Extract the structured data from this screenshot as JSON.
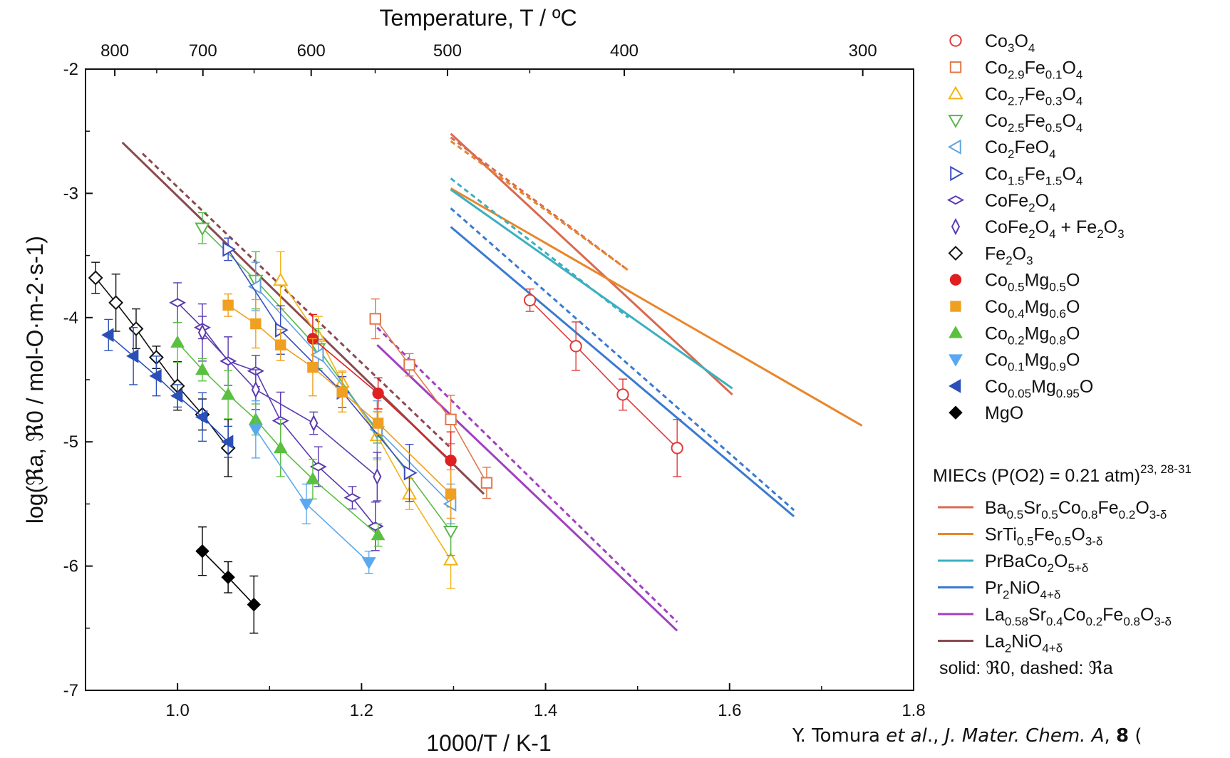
{
  "chart_data": {
    "type": "scatter",
    "xlabel": "1000/T / K-1",
    "ylabel": "log(ℜa, ℜ0 / mol-O·m-2·s-1)",
    "top_axis_label": "Temperature, T / ºC",
    "xlim": [
      0.9,
      1.8
    ],
    "ylim": [
      -7,
      -2
    ],
    "x_ticks": [
      1.0,
      1.2,
      1.4,
      1.6,
      1.8
    ],
    "x_tick_labels": [
      "1.0",
      "1.2",
      "1.4",
      "1.6",
      "1.8"
    ],
    "y_ticks": [
      -7,
      -6,
      -5,
      -4,
      -3,
      -2
    ],
    "y_tick_labels": [
      "-7",
      "-6",
      "-5",
      "-4",
      "-3",
      "-2"
    ],
    "top_ticks_celsius": [
      800,
      700,
      600,
      500,
      400,
      300
    ],
    "top_tick_labels": [
      "800",
      "700",
      "600",
      "500",
      "400",
      "300"
    ],
    "grid": false,
    "legend_position": "right",
    "series": [
      {
        "name": "Co3O4",
        "color": "#e03a3a",
        "marker": "circle",
        "filled": false,
        "points": [
          [
            1.383,
            -3.86
          ],
          [
            1.433,
            -4.23
          ],
          [
            1.484,
            -4.62
          ],
          [
            1.543,
            -5.05
          ]
        ]
      },
      {
        "name": "Co2.9Fe0.1O4",
        "color": "#e2784a",
        "marker": "square",
        "filled": false,
        "points": [
          [
            1.215,
            -4.01
          ],
          [
            1.252,
            -4.38
          ],
          [
            1.297,
            -4.82
          ],
          [
            1.336,
            -5.33
          ]
        ]
      },
      {
        "name": "Co2.7Fe0.3O4",
        "color": "#f2b41a",
        "marker": "triangle-up",
        "filled": false,
        "points": [
          [
            1.112,
            -3.7
          ],
          [
            1.153,
            -4.15
          ],
          [
            1.179,
            -4.52
          ],
          [
            1.217,
            -4.95
          ],
          [
            1.252,
            -5.42
          ],
          [
            1.297,
            -5.95
          ]
        ]
      },
      {
        "name": "Co2.5Fe0.5O4",
        "color": "#5ab84a",
        "marker": "triangle-down",
        "filled": false,
        "points": [
          [
            1.027,
            -3.28
          ],
          [
            1.085,
            -3.7
          ],
          [
            1.153,
            -4.25
          ],
          [
            1.217,
            -4.92
          ],
          [
            1.297,
            -5.72
          ]
        ]
      },
      {
        "name": "Co2FeO4",
        "color": "#62a2e0",
        "marker": "triangle-left",
        "filled": false,
        "points": [
          [
            1.085,
            -3.75
          ],
          [
            1.153,
            -4.3
          ],
          [
            1.217,
            -4.9
          ],
          [
            1.297,
            -5.5
          ]
        ]
      },
      {
        "name": "Co1.5Fe1.5O4",
        "color": "#3a4cc0",
        "marker": "triangle-right",
        "filled": false,
        "points": [
          [
            1.055,
            -3.45
          ],
          [
            1.112,
            -4.1
          ],
          [
            1.179,
            -4.6
          ],
          [
            1.252,
            -5.25
          ]
        ]
      },
      {
        "name": "CoFe2O4",
        "color": "#5a3ab0",
        "marker": "diamond-wide",
        "filled": false,
        "points": [
          [
            1.0,
            -3.88
          ],
          [
            1.027,
            -4.08
          ],
          [
            1.055,
            -4.35
          ],
          [
            1.085,
            -4.43
          ],
          [
            1.112,
            -4.83
          ],
          [
            1.153,
            -5.2
          ],
          [
            1.19,
            -5.45
          ],
          [
            1.215,
            -5.68
          ]
        ]
      },
      {
        "name": "CoFe2O4 + Fe2O3",
        "color": "#5a3ab0",
        "marker": "diamond-tall",
        "filled": false,
        "points": [
          [
            1.027,
            -4.12
          ],
          [
            1.085,
            -4.58
          ],
          [
            1.148,
            -4.85
          ],
          [
            1.217,
            -5.28
          ]
        ]
      },
      {
        "name": "Fe2O3",
        "color": "#111111",
        "marker": "diamond",
        "filled": false,
        "points": [
          [
            0.911,
            -3.68
          ],
          [
            0.933,
            -3.88
          ],
          [
            0.955,
            -4.09
          ],
          [
            0.977,
            -4.32
          ],
          [
            1.0,
            -4.55
          ],
          [
            1.027,
            -4.78
          ],
          [
            1.055,
            -5.05
          ]
        ]
      },
      {
        "name": "Co0.5Mg0.5O",
        "color": "#e02020",
        "marker": "circle",
        "filled": true,
        "points": [
          [
            1.147,
            -4.17
          ],
          [
            1.218,
            -4.61
          ],
          [
            1.297,
            -5.15
          ]
        ]
      },
      {
        "name": "Co0.4Mg0.6O",
        "color": "#f0a020",
        "marker": "square",
        "filled": true,
        "points": [
          [
            1.055,
            -3.9
          ],
          [
            1.085,
            -4.05
          ],
          [
            1.112,
            -4.22
          ],
          [
            1.147,
            -4.4
          ],
          [
            1.179,
            -4.6
          ],
          [
            1.218,
            -4.85
          ],
          [
            1.297,
            -5.42
          ]
        ]
      },
      {
        "name": "Co0.2Mg0.8O",
        "color": "#5ac040",
        "marker": "triangle-up",
        "filled": true,
        "points": [
          [
            1.0,
            -4.2
          ],
          [
            1.027,
            -4.42
          ],
          [
            1.055,
            -4.62
          ],
          [
            1.085,
            -4.82
          ],
          [
            1.112,
            -5.05
          ],
          [
            1.147,
            -5.3
          ],
          [
            1.218,
            -5.75
          ]
        ]
      },
      {
        "name": "Co0.1Mg0.9O",
        "color": "#5aa8f0",
        "marker": "triangle-down",
        "filled": true,
        "points": [
          [
            1.085,
            -4.9
          ],
          [
            1.14,
            -5.5
          ],
          [
            1.208,
            -5.97
          ]
        ]
      },
      {
        "name": "Co0.05Mg0.95O",
        "color": "#2a50b8",
        "marker": "triangle-left",
        "filled": true,
        "points": [
          [
            0.925,
            -4.14
          ],
          [
            0.952,
            -4.31
          ],
          [
            0.977,
            -4.47
          ],
          [
            1.0,
            -4.63
          ],
          [
            1.027,
            -4.8
          ],
          [
            1.055,
            -5.0
          ]
        ]
      },
      {
        "name": "MgO",
        "color": "#000000",
        "marker": "diamond",
        "filled": true,
        "points": [
          [
            1.027,
            -5.88
          ],
          [
            1.055,
            -6.09
          ],
          [
            1.083,
            -6.31
          ]
        ]
      }
    ],
    "miec_lines": [
      {
        "name": "Ba0.5Sr0.5Co0.8Fe0.2O3-δ",
        "color": "#d86a50",
        "solid": [
          [
            1.297,
            -2.52
          ],
          [
            1.603,
            -4.62
          ]
        ],
        "dashed": [
          [
            1.297,
            -2.55
          ],
          [
            1.49,
            -3.62
          ]
        ]
      },
      {
        "name": "SrTi0.5Fe0.5O3-δ",
        "color": "#e8862a",
        "solid": [
          [
            1.297,
            -2.96
          ],
          [
            1.744,
            -4.87
          ]
        ],
        "dashed": [
          [
            1.297,
            -2.58
          ],
          [
            1.49,
            -3.62
          ]
        ]
      },
      {
        "name": "PrBaCo2O5+δ",
        "color": "#3ab0c0",
        "solid": [
          [
            1.297,
            -2.97
          ],
          [
            1.603,
            -4.57
          ]
        ],
        "dashed": [
          [
            1.297,
            -2.88
          ],
          [
            1.49,
            -4.0
          ]
        ]
      },
      {
        "name": "Pr2NiO4+δ",
        "color": "#3a7ad0",
        "solid": [
          [
            1.297,
            -3.27
          ],
          [
            1.67,
            -5.6
          ]
        ],
        "dashed": [
          [
            1.297,
            -3.12
          ],
          [
            1.67,
            -5.55
          ]
        ]
      },
      {
        "name": "La0.58Sr0.4Co0.2Fe0.8O3-δ",
        "color": "#a040c0",
        "solid": [
          [
            1.217,
            -4.22
          ],
          [
            1.543,
            -6.52
          ]
        ],
        "dashed": [
          [
            1.217,
            -4.08
          ],
          [
            1.543,
            -6.45
          ]
        ]
      },
      {
        "name": "La2NiO4+δ",
        "color": "#8a4a50",
        "solid": [
          [
            0.94,
            -2.59
          ],
          [
            1.333,
            -5.42
          ]
        ],
        "dashed": [
          [
            0.962,
            -2.68
          ],
          [
            1.297,
            -5.05
          ]
        ]
      }
    ]
  },
  "legend": {
    "entries": [
      {
        "base": "Co",
        "subs": [
          [
            "Co",
            ""
          ],
          [
            "3",
            true
          ],
          [
            "O",
            ""
          ],
          [
            "4",
            true
          ]
        ]
      },
      {
        "subs": [
          [
            "Co",
            ""
          ],
          [
            "2.9",
            true
          ],
          [
            "Fe",
            ""
          ],
          [
            "0.1",
            true
          ],
          [
            "O",
            ""
          ],
          [
            "4",
            true
          ]
        ]
      },
      {
        "subs": [
          [
            "Co",
            ""
          ],
          [
            "2.7",
            true
          ],
          [
            "Fe",
            ""
          ],
          [
            "0.3",
            true
          ],
          [
            "O",
            ""
          ],
          [
            "4",
            true
          ]
        ]
      },
      {
        "subs": [
          [
            "Co",
            ""
          ],
          [
            "2.5",
            true
          ],
          [
            "Fe",
            ""
          ],
          [
            "0.5",
            true
          ],
          [
            "O",
            ""
          ],
          [
            "4",
            true
          ]
        ]
      },
      {
        "subs": [
          [
            "Co",
            ""
          ],
          [
            "2",
            true
          ],
          [
            "FeO",
            ""
          ],
          [
            "4",
            true
          ]
        ]
      },
      {
        "subs": [
          [
            "Co",
            ""
          ],
          [
            "1.5",
            true
          ],
          [
            "Fe",
            ""
          ],
          [
            "1.5",
            true
          ],
          [
            "O",
            ""
          ],
          [
            "4",
            true
          ]
        ]
      },
      {
        "subs": [
          [
            "CoFe",
            ""
          ],
          [
            "2",
            true
          ],
          [
            "O",
            ""
          ],
          [
            "4",
            true
          ]
        ]
      },
      {
        "subs": [
          [
            "CoFe",
            ""
          ],
          [
            "2",
            true
          ],
          [
            "O",
            ""
          ],
          [
            "4",
            true
          ],
          [
            " + Fe",
            ""
          ],
          [
            "2",
            true
          ],
          [
            "O",
            ""
          ],
          [
            "3",
            true
          ]
        ]
      },
      {
        "subs": [
          [
            "Fe",
            ""
          ],
          [
            "2",
            true
          ],
          [
            "O",
            ""
          ],
          [
            "3",
            true
          ]
        ]
      },
      {
        "subs": [
          [
            "Co",
            ""
          ],
          [
            "0.5",
            true
          ],
          [
            "Mg",
            ""
          ],
          [
            "0.5",
            true
          ],
          [
            "O",
            ""
          ]
        ]
      },
      {
        "subs": [
          [
            "Co",
            ""
          ],
          [
            "0.4",
            true
          ],
          [
            "Mg",
            ""
          ],
          [
            "0.6",
            true
          ],
          [
            "O",
            ""
          ]
        ]
      },
      {
        "subs": [
          [
            "Co",
            ""
          ],
          [
            "0.2",
            true
          ],
          [
            "Mg",
            ""
          ],
          [
            "0.8",
            true
          ],
          [
            "O",
            ""
          ]
        ]
      },
      {
        "subs": [
          [
            "Co",
            ""
          ],
          [
            "0.1",
            true
          ],
          [
            "Mg",
            ""
          ],
          [
            "0.9",
            true
          ],
          [
            "O",
            ""
          ]
        ]
      },
      {
        "subs": [
          [
            "Co",
            ""
          ],
          [
            "0.05",
            true
          ],
          [
            "Mg",
            ""
          ],
          [
            "0.95",
            true
          ],
          [
            "O",
            ""
          ]
        ]
      },
      {
        "subs": [
          [
            "MgO",
            ""
          ]
        ]
      }
    ],
    "miec_heading": "MIECs (P(O2) = 0.21 atm)",
    "miec_heading_sup": "23, 28-31",
    "miec_entries": [
      {
        "subs": [
          [
            "Ba",
            ""
          ],
          [
            "0.5",
            true
          ],
          [
            "Sr",
            ""
          ],
          [
            "0.5",
            true
          ],
          [
            "Co",
            ""
          ],
          [
            "0.8",
            true
          ],
          [
            "Fe",
            ""
          ],
          [
            "0.2",
            true
          ],
          [
            "O",
            ""
          ],
          [
            "3-δ",
            true
          ]
        ]
      },
      {
        "subs": [
          [
            "SrTi",
            ""
          ],
          [
            "0.5",
            true
          ],
          [
            "Fe",
            ""
          ],
          [
            "0.5",
            true
          ],
          [
            "O",
            ""
          ],
          [
            "3-δ",
            true
          ]
        ]
      },
      {
        "subs": [
          [
            "PrBaCo",
            ""
          ],
          [
            "2",
            true
          ],
          [
            "O",
            ""
          ],
          [
            "5+δ",
            true
          ]
        ]
      },
      {
        "subs": [
          [
            "Pr",
            ""
          ],
          [
            "2",
            true
          ],
          [
            "NiO",
            ""
          ],
          [
            "4+δ",
            true
          ]
        ]
      },
      {
        "subs": [
          [
            "La",
            ""
          ],
          [
            "0.58",
            true
          ],
          [
            "Sr",
            ""
          ],
          [
            "0.4",
            true
          ],
          [
            "Co",
            ""
          ],
          [
            "0.2",
            true
          ],
          [
            "Fe",
            ""
          ],
          [
            "0.8",
            true
          ],
          [
            "O",
            ""
          ],
          [
            "3-δ",
            true
          ]
        ]
      },
      {
        "subs": [
          [
            "La",
            ""
          ],
          [
            "2",
            true
          ],
          [
            "NiO",
            ""
          ],
          [
            "4+δ",
            true
          ]
        ]
      }
    ],
    "note": "solid: ℜ0, dashed: ℜa"
  },
  "citation": {
    "prefix": "Y. Tomura ",
    "etal": "et al",
    "middle": "., ",
    "journal": "J. Mater. Chem. A",
    "sep": ", ",
    "volume": "8",
    "tail": " ("
  }
}
